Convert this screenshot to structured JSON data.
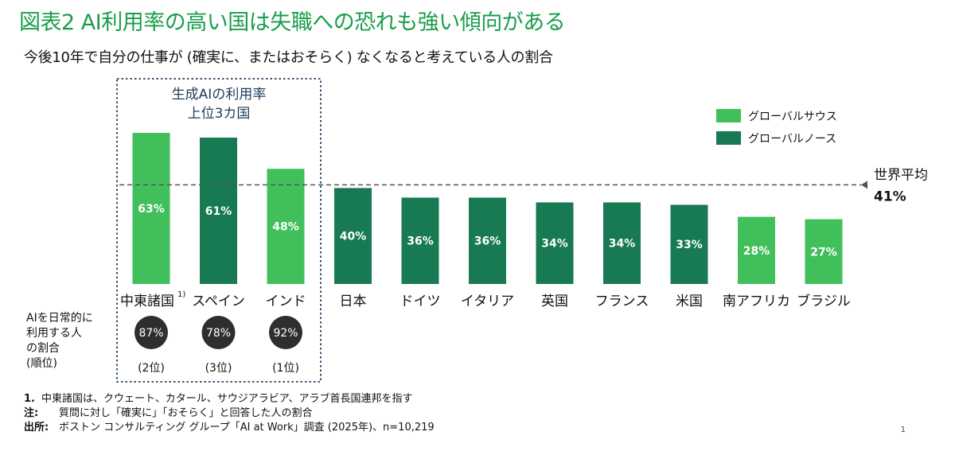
{
  "header": {
    "title": "図表2 AI利用率の高い国は失職への恐れも強い傾向がある",
    "subtitle": "今後10年で自分の仕事が (確実に、またはおそらく) なくなると考えている人の割合"
  },
  "highlight_box": {
    "label_line1": "生成AIの利用率",
    "label_line2": "上位3カ国"
  },
  "usage_row": {
    "label_lines": [
      "AIを日常的に",
      "利用する人",
      "の割合",
      "(順位)"
    ],
    "items": [
      {
        "value": "87%",
        "rank": "(2位)"
      },
      {
        "value": "78%",
        "rank": "(3位)"
      },
      {
        "value": "92%",
        "rank": "(1位)"
      }
    ]
  },
  "colors": {
    "global_south": "#41bf5a",
    "global_north": "#177a52",
    "title": "#1a9e4b",
    "box_border": "#1f3d5c",
    "usage_circle": "#2e2e2e"
  },
  "chart_data": {
    "type": "bar",
    "categories": [
      "中東諸国",
      "スペイン",
      "インド",
      "日本",
      "ドイツ",
      "イタリア",
      "英国",
      "フランス",
      "米国",
      "南アフリカ",
      "ブラジル"
    ],
    "values": [
      63,
      61,
      48,
      40,
      36,
      36,
      34,
      34,
      33,
      28,
      27
    ],
    "value_labels": [
      "63%",
      "61%",
      "48%",
      "40%",
      "36%",
      "36%",
      "34%",
      "34%",
      "33%",
      "28%",
      "27%"
    ],
    "groups": [
      "south",
      "north",
      "south",
      "north",
      "north",
      "north",
      "north",
      "north",
      "north",
      "south",
      "south"
    ],
    "first_category_footnote": "1)",
    "legend": [
      {
        "key": "south",
        "label": "グローバルサウス"
      },
      {
        "key": "north",
        "label": "グローバルノース"
      }
    ],
    "legend_position": "top-right",
    "reference_line": {
      "value": 41,
      "label": "世界平均",
      "value_label": "41%"
    },
    "ylim": [
      0,
      63
    ]
  },
  "notes": [
    {
      "key": "1.",
      "text": "中東諸国は、クウェート、カタール、サウジアラビア、アラブ首長国連邦を指す"
    },
    {
      "key": "注:",
      "text": "質問に対し「確実に」「おそらく」と回答した人の割合"
    },
    {
      "key": "出所:",
      "text": "ボストン コンサルティング グループ「AI at Work」調査 (2025年)、n=10,219"
    }
  ],
  "page_number": "1"
}
